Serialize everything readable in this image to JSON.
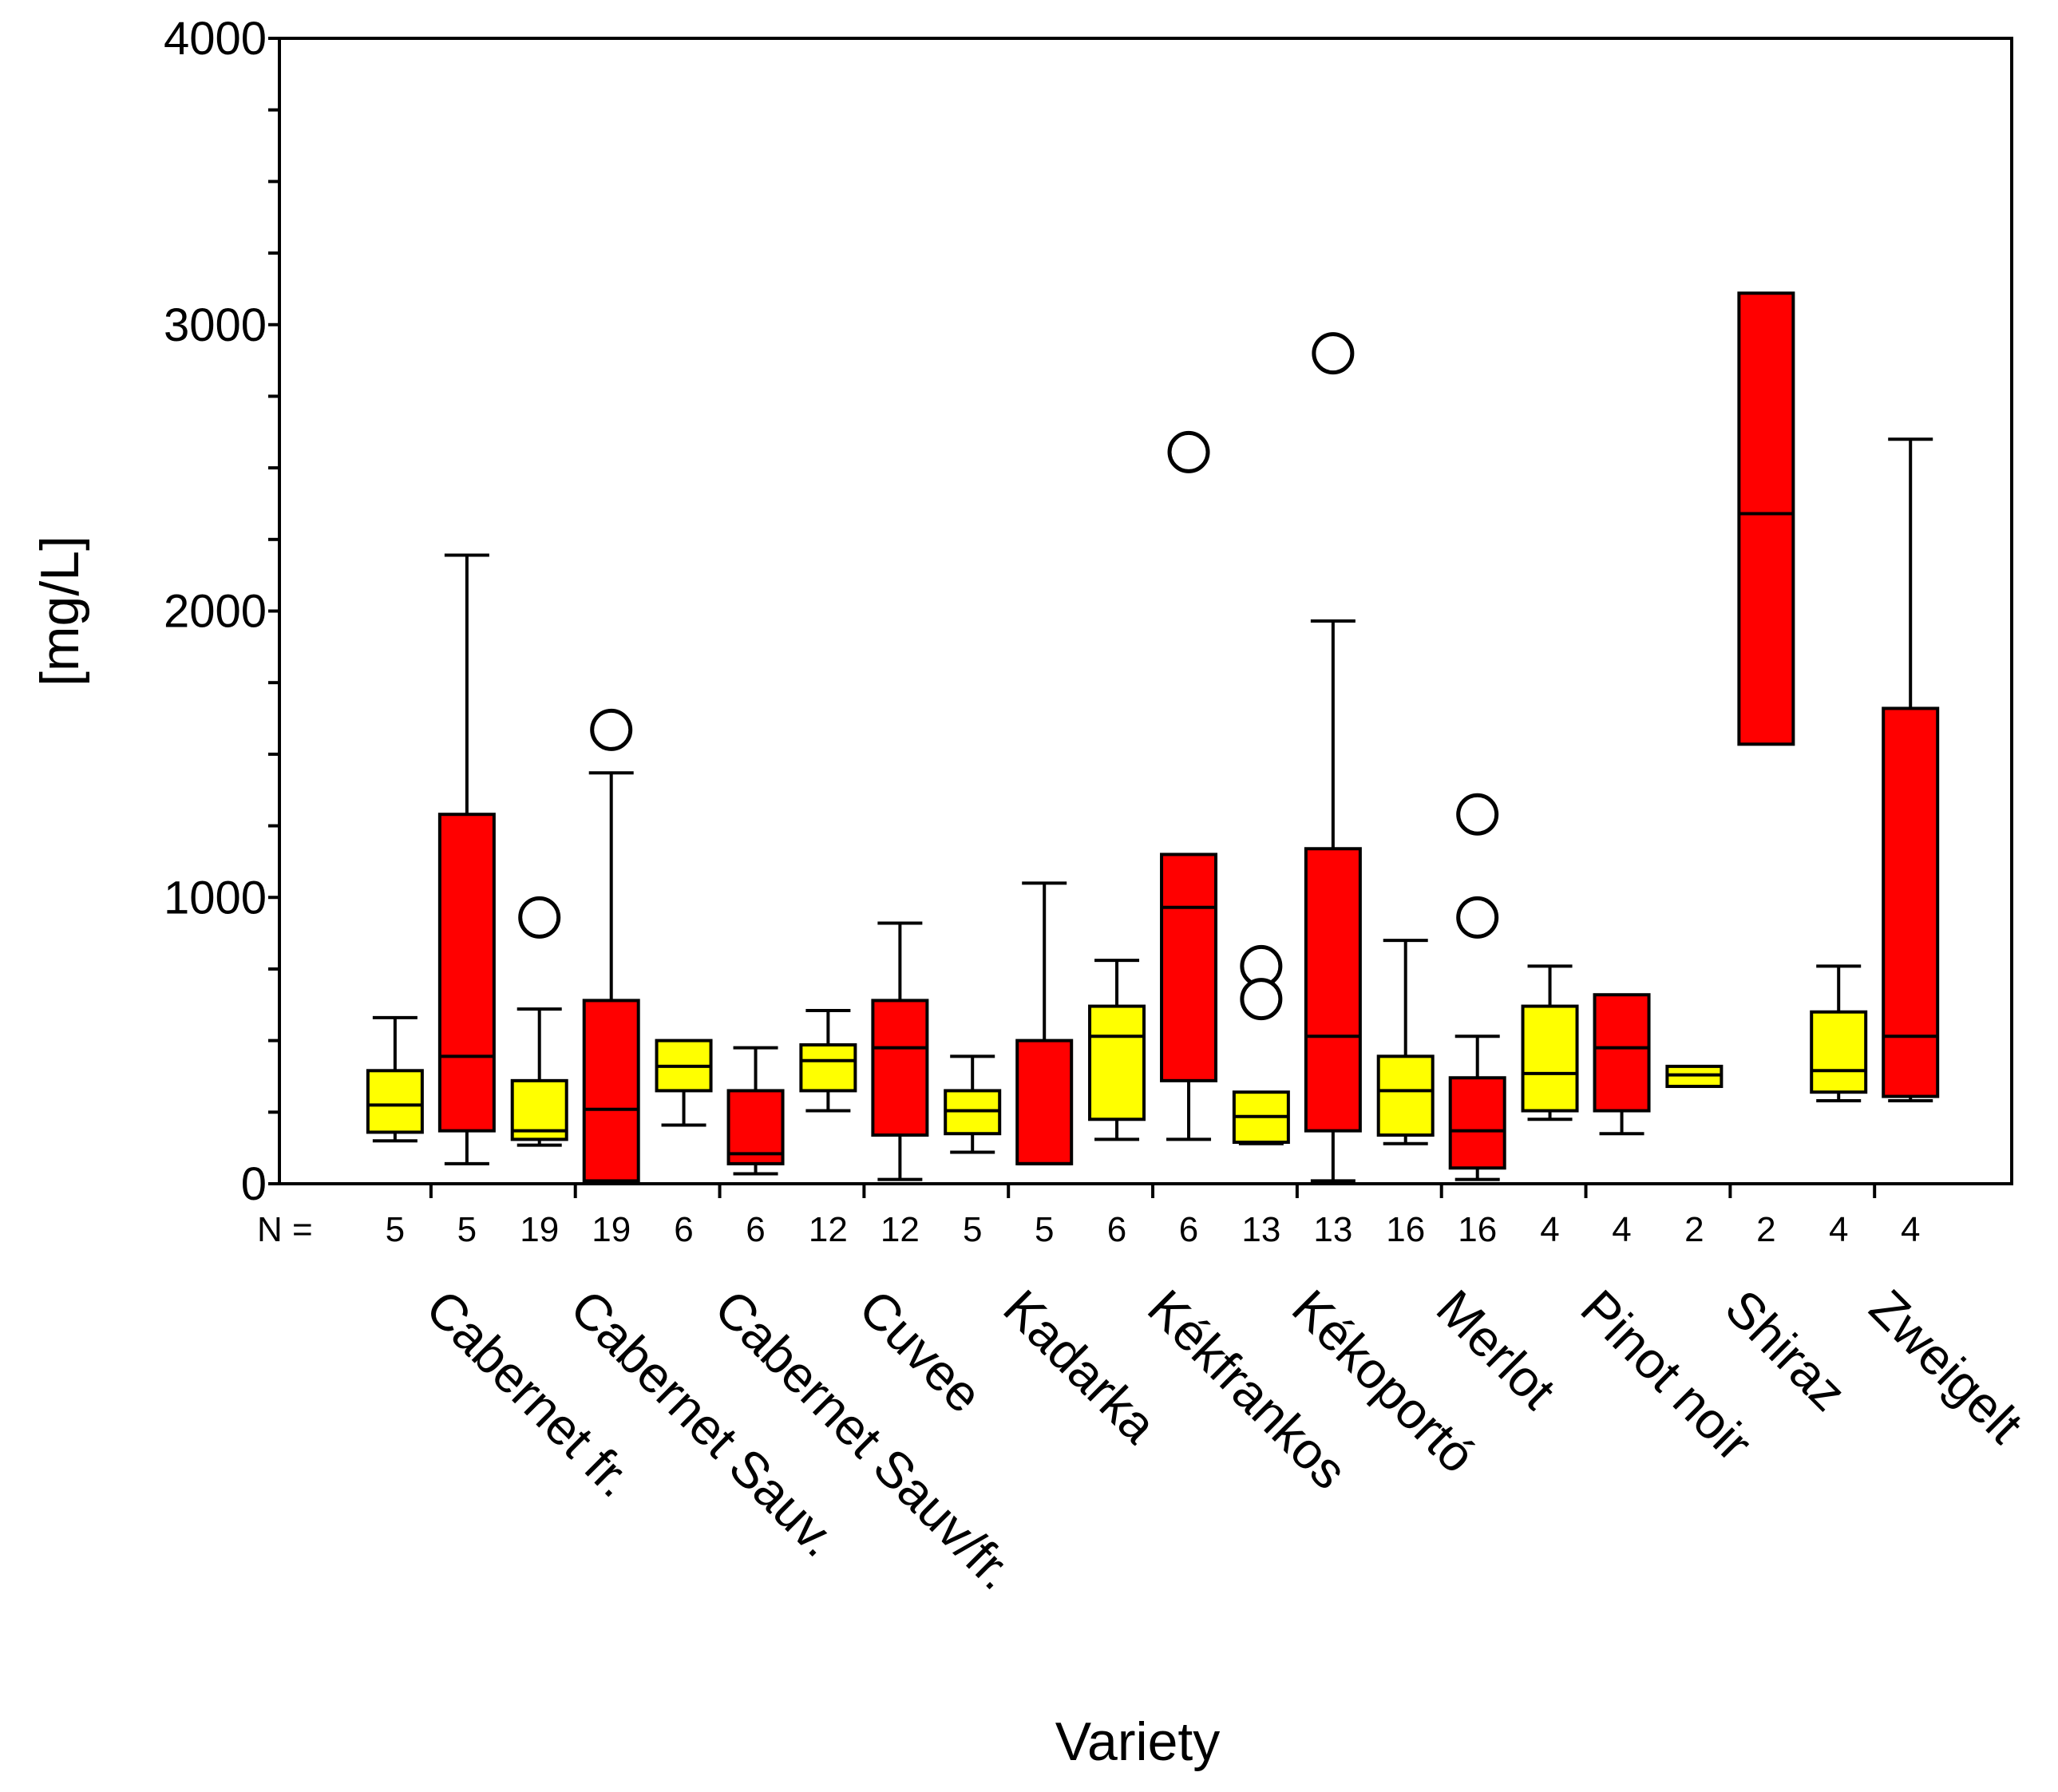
{
  "chart_data": {
    "type": "boxplot",
    "xlabel": "Variety",
    "ylabel": "[mg/L]",
    "ylim": [
      0,
      4000
    ],
    "yticks": [
      0,
      1000,
      2000,
      3000,
      4000
    ],
    "ytick_labels": [
      "0",
      "1000",
      "2000",
      "3000",
      "4000"
    ],
    "n_prefix": "N =",
    "series_colors": [
      "#ffff00",
      "#ff0000"
    ],
    "categories": [
      {
        "label": "Cabernet fr.",
        "boxes": [
          {
            "n": "5",
            "min": 150,
            "q1": 180,
            "median": 275,
            "q3": 395,
            "max": 580,
            "outliers": []
          },
          {
            "n": "5",
            "min": 70,
            "q1": 185,
            "median": 445,
            "q3": 1290,
            "max": 2195,
            "outliers": []
          }
        ]
      },
      {
        "label": "Cabernet Sauv.",
        "boxes": [
          {
            "n": "19",
            "min": 135,
            "q1": 155,
            "median": 185,
            "q3": 360,
            "max": 610,
            "outliers": [
              930
            ]
          },
          {
            "n": "19",
            "min": 10,
            "q1": 10,
            "median": 260,
            "q3": 640,
            "max": 1435,
            "outliers": [
              1585
            ]
          }
        ]
      },
      {
        "label": "Cabernet Sauv/fr.",
        "boxes": [
          {
            "n": "6",
            "min": 205,
            "q1": 325,
            "median": 410,
            "q3": 500,
            "max": 500,
            "outliers": []
          },
          {
            "n": "6",
            "min": 35,
            "q1": 70,
            "median": 105,
            "q3": 325,
            "max": 475,
            "outliers": []
          }
        ]
      },
      {
        "label": "Cuvee",
        "boxes": [
          {
            "n": "12",
            "min": 255,
            "q1": 325,
            "median": 430,
            "q3": 485,
            "max": 605,
            "outliers": []
          },
          {
            "n": "12",
            "min": 15,
            "q1": 170,
            "median": 475,
            "q3": 640,
            "max": 910,
            "outliers": []
          }
        ]
      },
      {
        "label": "Kadarka",
        "boxes": [
          {
            "n": "5",
            "min": 110,
            "q1": 175,
            "median": 255,
            "q3": 325,
            "max": 445,
            "outliers": []
          },
          {
            "n": "5",
            "min": 70,
            "q1": 70,
            "median": 70,
            "q3": 500,
            "max": 1050,
            "outliers": []
          }
        ]
      },
      {
        "label": "Kékfrankos",
        "boxes": [
          {
            "n": "6",
            "min": 155,
            "q1": 225,
            "median": 515,
            "q3": 620,
            "max": 780,
            "outliers": []
          },
          {
            "n": "6",
            "min": 155,
            "q1": 360,
            "median": 965,
            "q3": 1150,
            "max": 1150,
            "outliers": [
              2555
            ]
          }
        ]
      },
      {
        "label": "Kékoportó",
        "boxes": [
          {
            "n": "13",
            "min": 140,
            "q1": 145,
            "median": 235,
            "q3": 320,
            "max": 320,
            "outliers": [
              760,
              645
            ]
          },
          {
            "n": "13",
            "min": 10,
            "q1": 185,
            "median": 515,
            "q3": 1170,
            "max": 1965,
            "outliers": [
              2900
            ]
          }
        ]
      },
      {
        "label": "Merlot",
        "boxes": [
          {
            "n": "16",
            "min": 140,
            "q1": 170,
            "median": 325,
            "q3": 445,
            "max": 850,
            "outliers": []
          },
          {
            "n": "16",
            "min": 15,
            "q1": 55,
            "median": 185,
            "q3": 370,
            "max": 515,
            "outliers": [
              1290,
              930
            ]
          }
        ]
      },
      {
        "label": "Pinot noir",
        "boxes": [
          {
            "n": "4",
            "min": 225,
            "q1": 255,
            "median": 385,
            "q3": 620,
            "max": 760,
            "outliers": []
          },
          {
            "n": "4",
            "min": 175,
            "q1": 255,
            "median": 475,
            "q3": 660,
            "max": 660,
            "outliers": []
          }
        ]
      },
      {
        "label": "Shiraz",
        "boxes": [
          {
            "n": "2",
            "min": 340,
            "q1": 340,
            "median": 380,
            "q3": 410,
            "max": 410,
            "outliers": []
          },
          {
            "n": "2",
            "min": 1535,
            "q1": 1535,
            "median": 2340,
            "q3": 3110,
            "max": 3110,
            "outliers": []
          }
        ]
      },
      {
        "label": "Zweigelt",
        "boxes": [
          {
            "n": "4",
            "min": 290,
            "q1": 320,
            "median": 395,
            "q3": 600,
            "max": 760,
            "outliers": []
          },
          {
            "n": "4",
            "min": 290,
            "q1": 305,
            "median": 515,
            "q3": 1660,
            "max": 2600,
            "outliers": []
          }
        ]
      }
    ]
  }
}
